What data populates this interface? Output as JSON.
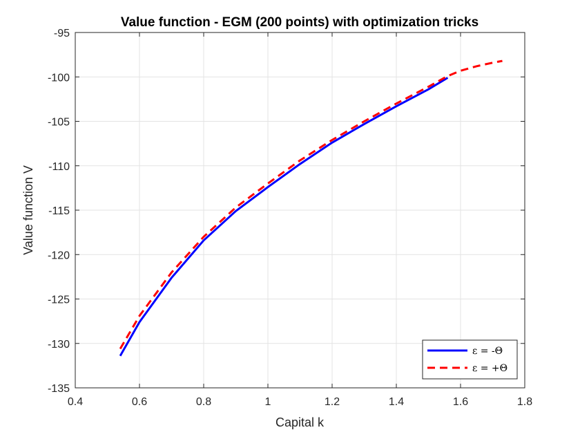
{
  "chart_data": {
    "type": "line",
    "title": "Value function - EGM (200 points) with optimization tricks",
    "xlabel": "Capital k",
    "ylabel": "Value function V",
    "xlim": [
      0.4,
      1.8
    ],
    "ylim": [
      -135,
      -95
    ],
    "xticks": [
      0.4,
      0.6,
      0.8,
      1,
      1.2,
      1.4,
      1.6,
      1.8
    ],
    "xtick_labels": [
      "0.4",
      "0.6",
      "0.8",
      "1",
      "1.2",
      "1.4",
      "1.6",
      "1.8"
    ],
    "yticks": [
      -135,
      -130,
      -125,
      -120,
      -115,
      -110,
      -105,
      -100,
      -95
    ],
    "ytick_labels": [
      "-135",
      "-130",
      "-125",
      "-120",
      "-115",
      "-110",
      "-105",
      "-100",
      "-95"
    ],
    "grid": true,
    "legend_position": "bottom-right",
    "series": [
      {
        "name": "ε = -Θ",
        "color": "#0000ff",
        "style": "solid",
        "x": [
          0.54,
          0.6,
          0.7,
          0.8,
          0.9,
          1.0,
          1.1,
          1.2,
          1.3,
          1.4,
          1.5,
          1.56
        ],
        "y": [
          -131.4,
          -127.6,
          -122.6,
          -118.4,
          -115.1,
          -112.4,
          -109.8,
          -107.4,
          -105.3,
          -103.3,
          -101.4,
          -100.1
        ]
      },
      {
        "name": "ε = +Θ",
        "color": "#ff0000",
        "style": "dashed",
        "x": [
          0.54,
          0.6,
          0.7,
          0.8,
          0.9,
          1.0,
          1.1,
          1.2,
          1.3,
          1.4,
          1.5,
          1.56,
          1.6,
          1.65,
          1.7,
          1.73
        ],
        "y": [
          -130.6,
          -126.9,
          -122.0,
          -118.0,
          -114.7,
          -112.0,
          -109.4,
          -107.1,
          -105.0,
          -103.0,
          -101.1,
          -99.9,
          -99.3,
          -98.8,
          -98.4,
          -98.2
        ]
      }
    ]
  }
}
